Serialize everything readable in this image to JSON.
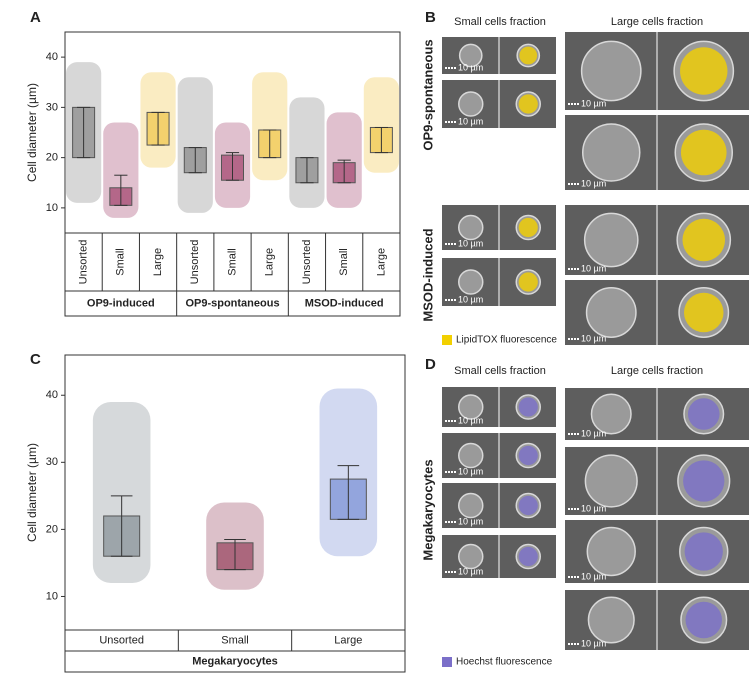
{
  "chart_data": [
    {
      "type": "box",
      "panel_label": "A",
      "y_label": "Cell diameter (µm)",
      "ylim": [
        5,
        45
      ],
      "yticks": [
        10,
        20,
        30,
        40
      ],
      "groups": [
        "OP9-induced",
        "OP9-spontaneous",
        "MSOD-induced"
      ],
      "series": [
        {
          "name": "Unsorted",
          "color": "#8c8c8c",
          "q1": [
            20,
            17,
            15
          ],
          "q3": [
            30,
            22,
            20
          ],
          "whisker_low": [
            20,
            17,
            15
          ],
          "whisker_high": [
            30,
            22,
            20
          ],
          "min": [
            11,
            9,
            10
          ],
          "max": [
            39,
            36,
            32
          ]
        },
        {
          "name": "Small",
          "color": "#a54a72",
          "q1": [
            10.5,
            15.5,
            15
          ],
          "q3": [
            14,
            20.5,
            19
          ],
          "whisker_low": [
            10.5,
            15.5,
            15
          ],
          "whisker_high": [
            16.5,
            21,
            19.5
          ],
          "min": [
            8,
            10,
            10
          ],
          "max": [
            27,
            27,
            29
          ]
        },
        {
          "name": "Large",
          "color": "#f0c850",
          "q1": [
            22.5,
            20,
            21
          ],
          "q3": [
            29,
            25.5,
            26
          ],
          "whisker_low": [
            22.5,
            20,
            21
          ],
          "whisker_high": [
            29,
            25.5,
            26
          ],
          "min": [
            18,
            15.5,
            17
          ],
          "max": [
            37,
            37,
            36
          ]
        }
      ]
    },
    {
      "type": "box",
      "panel_label": "C",
      "y_label": "Cell diameter (µm)",
      "ylim": [
        5,
        46
      ],
      "yticks": [
        10,
        20,
        30,
        40
      ],
      "groups": [
        "Megakaryocytes"
      ],
      "series": [
        {
          "name": "Unsorted",
          "color": "#8a9399",
          "q1": [
            16
          ],
          "q3": [
            22
          ],
          "whisker_low": [
            16
          ],
          "whisker_high": [
            25
          ],
          "min": [
            12
          ],
          "max": [
            39
          ]
        },
        {
          "name": "Small",
          "color": "#9b4a63",
          "q1": [
            14
          ],
          "q3": [
            18
          ],
          "whisker_low": [
            14
          ],
          "whisker_high": [
            18.5
          ],
          "min": [
            11
          ],
          "max": [
            24
          ]
        },
        {
          "name": "Large",
          "color": "#7e93d6",
          "q1": [
            21.5
          ],
          "q3": [
            27.5
          ],
          "whisker_low": [
            21.5
          ],
          "whisker_high": [
            29.5
          ],
          "min": [
            16
          ],
          "max": [
            41
          ]
        }
      ]
    }
  ],
  "image_panels": [
    {
      "panel_label": "B",
      "small_header": "Small cells fraction",
      "large_header": "Large cells fraction",
      "row_labels": [
        "OP9-spontaneous",
        "MSOD-induced"
      ],
      "scale_bar": "10 µm",
      "legend": "LipidTOX fluorescence",
      "legend_color": "#f2d000"
    },
    {
      "panel_label": "D",
      "small_header": "Small cells fraction",
      "large_header": "Large cells fraction",
      "row_labels": [
        "Megakaryocytes"
      ],
      "scale_bar": "10 µm",
      "legend": "Hoechst fluorescence",
      "legend_color": "#7b6fc9"
    }
  ]
}
